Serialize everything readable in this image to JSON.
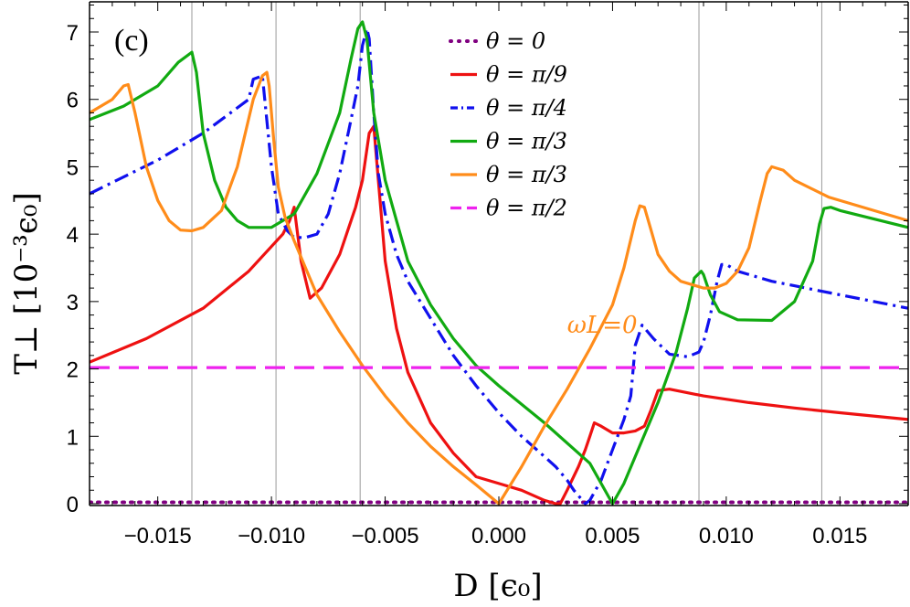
{
  "chart_data": {
    "type": "line",
    "panel_label": "(c)",
    "xlabel": "D [ϵ₀]",
    "ylabel": "T⊥ [10⁻³ϵ₀]",
    "xlim": [
      -0.018,
      0.018
    ],
    "ylim": [
      -0.1,
      7.5
    ],
    "xticks": [
      -0.015,
      -0.01,
      -0.005,
      0.0,
      0.005,
      0.01,
      0.015
    ],
    "xtick_labels": [
      "−0.015",
      "−0.010",
      "−0.005",
      "0.000",
      "0.005",
      "0.010",
      "0.015"
    ],
    "yticks": [
      0,
      1,
      2,
      3,
      4,
      5,
      6,
      7
    ],
    "ytick_labels": [
      "0",
      "1",
      "2",
      "3",
      "4",
      "5",
      "6",
      "7"
    ],
    "grid_x": [
      -0.0135,
      -0.0098,
      -0.0061,
      0.0088,
      0.0142
    ],
    "annotation": {
      "text": "ωL=0",
      "x": 0.0063,
      "y": 3.0,
      "color": "#ff8c1a"
    },
    "legend_position": "top-center",
    "series": [
      {
        "name": "θ = 0",
        "color": "#800080",
        "style": "dotted",
        "x": [
          -0.018,
          0.018
        ],
        "y": [
          0.02,
          0.02
        ]
      },
      {
        "name": "θ = π/9",
        "color": "#ee1111",
        "style": "solid",
        "x": [
          -0.018,
          -0.0155,
          -0.013,
          -0.011,
          -0.0095,
          -0.0092,
          -0.009,
          -0.0087,
          -0.0083,
          -0.0078,
          -0.007,
          -0.0063,
          -0.006,
          -0.0057,
          -0.0055,
          -0.0053,
          -0.005,
          -0.0045,
          -0.004,
          -0.003,
          -0.002,
          -0.001,
          0.0,
          0.001,
          0.002,
          0.0025,
          0.0027,
          0.003,
          0.0035,
          0.0038,
          0.004,
          0.0042,
          0.0045,
          0.005,
          0.0055,
          0.006,
          0.0064,
          0.0067,
          0.007,
          0.0075,
          0.009,
          0.011,
          0.013,
          0.015,
          0.018
        ],
        "y": [
          2.1,
          2.45,
          2.9,
          3.45,
          4.0,
          4.2,
          4.4,
          3.6,
          3.05,
          3.2,
          3.7,
          4.4,
          4.8,
          5.5,
          5.6,
          4.8,
          3.6,
          2.6,
          1.95,
          1.2,
          0.75,
          0.4,
          0.3,
          0.2,
          0.05,
          0.0,
          0.0,
          0.2,
          0.55,
          0.8,
          1.0,
          1.2,
          1.15,
          1.05,
          1.05,
          1.08,
          1.15,
          1.4,
          1.68,
          1.7,
          1.6,
          1.5,
          1.42,
          1.35,
          1.25
        ]
      },
      {
        "name": "θ = π/4",
        "color": "#1010ee",
        "style": "dashdot",
        "x": [
          -0.018,
          -0.015,
          -0.013,
          -0.011,
          -0.0108,
          -0.0104,
          -0.01,
          -0.0097,
          -0.0093,
          -0.009,
          -0.0085,
          -0.008,
          -0.0075,
          -0.007,
          -0.0065,
          -0.0062,
          -0.006,
          -0.0058,
          -0.0057,
          -0.0055,
          -0.0053,
          -0.005,
          -0.0045,
          -0.004,
          -0.003,
          -0.002,
          -0.001,
          0.0,
          0.001,
          0.002,
          0.0025,
          0.003,
          0.0033,
          0.0035,
          0.0038,
          0.004,
          0.0045,
          0.005,
          0.0055,
          0.0058,
          0.006,
          0.0063,
          0.0068,
          0.0075,
          0.0083,
          0.0088,
          0.009,
          0.0093,
          0.0096,
          0.0098,
          0.01,
          0.0105,
          0.012,
          0.015,
          0.018
        ],
        "y": [
          4.6,
          5.1,
          5.5,
          6.0,
          6.3,
          6.35,
          5.0,
          4.3,
          4.05,
          3.95,
          3.95,
          4.0,
          4.3,
          4.9,
          5.7,
          6.2,
          6.8,
          7.05,
          6.9,
          5.8,
          4.9,
          4.3,
          3.7,
          3.3,
          2.75,
          2.2,
          1.75,
          1.35,
          1.0,
          0.7,
          0.55,
          0.35,
          0.2,
          0.12,
          0.0,
          0.05,
          0.35,
          0.8,
          1.25,
          1.6,
          2.35,
          2.65,
          2.45,
          2.22,
          2.18,
          2.25,
          2.4,
          2.8,
          3.3,
          3.55,
          3.55,
          3.45,
          3.3,
          3.1,
          2.9
        ]
      },
      {
        "name": "θ = π/3",
        "color": "#11aa11",
        "style": "solid",
        "x": [
          -0.018,
          -0.0165,
          -0.015,
          -0.0141,
          -0.0135,
          -0.0133,
          -0.013,
          -0.0125,
          -0.012,
          -0.0115,
          -0.011,
          -0.01,
          -0.009,
          -0.008,
          -0.007,
          -0.0065,
          -0.0062,
          -0.006,
          -0.0058,
          -0.0055,
          -0.005,
          -0.0045,
          -0.004,
          -0.003,
          -0.002,
          -0.001,
          0.0,
          0.002,
          0.004,
          0.005,
          0.0055,
          0.006,
          0.007,
          0.0078,
          0.0083,
          0.0086,
          0.0089,
          0.009,
          0.0093,
          0.0097,
          0.0105,
          0.012,
          0.013,
          0.0138,
          0.0141,
          0.0143,
          0.0146,
          0.015,
          0.018
        ],
        "y": [
          5.7,
          5.9,
          6.2,
          6.55,
          6.7,
          6.4,
          5.5,
          4.8,
          4.4,
          4.2,
          4.1,
          4.1,
          4.3,
          4.9,
          5.8,
          6.6,
          7.05,
          7.15,
          6.9,
          5.8,
          4.8,
          4.2,
          3.6,
          2.95,
          2.45,
          2.05,
          1.75,
          1.2,
          0.6,
          0.0,
          0.3,
          0.7,
          1.5,
          2.25,
          2.9,
          3.35,
          3.45,
          3.4,
          3.1,
          2.85,
          2.73,
          2.72,
          3.0,
          3.6,
          4.15,
          4.38,
          4.4,
          4.35,
          4.1
        ]
      },
      {
        "name": "θ = π/3",
        "color": "#ff8c1a",
        "style": "solid",
        "x": [
          -0.018,
          -0.017,
          -0.0165,
          -0.0163,
          -0.016,
          -0.0155,
          -0.015,
          -0.0145,
          -0.014,
          -0.0135,
          -0.013,
          -0.0122,
          -0.0115,
          -0.0108,
          -0.0104,
          -0.0102,
          -0.0101,
          -0.0099,
          -0.0097,
          -0.0094,
          -0.009,
          -0.0085,
          -0.008,
          -0.007,
          -0.006,
          -0.005,
          -0.004,
          -0.003,
          -0.002,
          -0.001,
          0.0,
          0.001,
          0.002,
          0.003,
          0.004,
          0.005,
          0.0055,
          0.006,
          0.0062,
          0.0064,
          0.0067,
          0.007,
          0.0075,
          0.008,
          0.009,
          0.0095,
          0.01,
          0.0105,
          0.011,
          0.0115,
          0.0118,
          0.012,
          0.0125,
          0.013,
          0.0145,
          0.018
        ],
        "y": [
          5.8,
          6.0,
          6.2,
          6.22,
          5.8,
          5.0,
          4.5,
          4.2,
          4.06,
          4.05,
          4.1,
          4.35,
          5.0,
          6.0,
          6.35,
          6.4,
          6.2,
          5.4,
          4.7,
          4.25,
          3.9,
          3.5,
          3.1,
          2.55,
          2.05,
          1.6,
          1.2,
          0.85,
          0.55,
          0.28,
          0.0,
          0.55,
          1.15,
          1.7,
          2.3,
          2.95,
          3.5,
          4.2,
          4.42,
          4.4,
          4.05,
          3.7,
          3.45,
          3.3,
          3.2,
          3.2,
          3.27,
          3.45,
          3.8,
          4.5,
          4.9,
          5.0,
          4.95,
          4.8,
          4.55,
          4.2
        ]
      },
      {
        "name": "θ = π/2",
        "color": "#ee22ee",
        "style": "dashed",
        "x": [
          -0.018,
          0.018
        ],
        "y": [
          2.02,
          2.02
        ]
      }
    ]
  }
}
